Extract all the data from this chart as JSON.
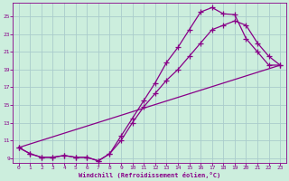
{
  "xlabel": "Windchill (Refroidissement éolien,°C)",
  "bg_color": "#cceedd",
  "line_color": "#880088",
  "grid_color": "#aacccc",
  "xlim": [
    -0.5,
    23.5
  ],
  "ylim": [
    8.5,
    26.5
  ],
  "xticks": [
    0,
    1,
    2,
    3,
    4,
    5,
    6,
    7,
    8,
    9,
    10,
    11,
    12,
    13,
    14,
    15,
    16,
    17,
    18,
    19,
    20,
    21,
    22,
    23
  ],
  "yticks": [
    9,
    11,
    13,
    15,
    17,
    19,
    21,
    23,
    25
  ],
  "line1_x": [
    0,
    1,
    2,
    3,
    4,
    5,
    6,
    7,
    8,
    9,
    10,
    11,
    12,
    13,
    14,
    15,
    16,
    17,
    18,
    19,
    20,
    21,
    22,
    23
  ],
  "line1_y": [
    10.2,
    9.5,
    9.1,
    9.1,
    9.3,
    9.1,
    9.1,
    8.7,
    9.5,
    11.5,
    13.5,
    15.5,
    17.5,
    19.8,
    21.5,
    23.5,
    25.5,
    26.0,
    25.3,
    25.2,
    22.5,
    21.0,
    19.5,
    19.5
  ],
  "line2_x": [
    0,
    1,
    2,
    3,
    4,
    5,
    6,
    7,
    8,
    9,
    10,
    11,
    12,
    13,
    14,
    15,
    16,
    17,
    18,
    19,
    20,
    21,
    22,
    23
  ],
  "line2_y": [
    10.2,
    9.5,
    9.1,
    9.1,
    9.3,
    9.1,
    9.1,
    8.7,
    9.5,
    11.0,
    13.0,
    14.8,
    16.3,
    17.8,
    19.0,
    20.5,
    22.0,
    23.5,
    24.0,
    24.5,
    24.0,
    22.0,
    20.5,
    19.5
  ],
  "line3_x": [
    0,
    23
  ],
  "line3_y": [
    10.2,
    19.5
  ]
}
